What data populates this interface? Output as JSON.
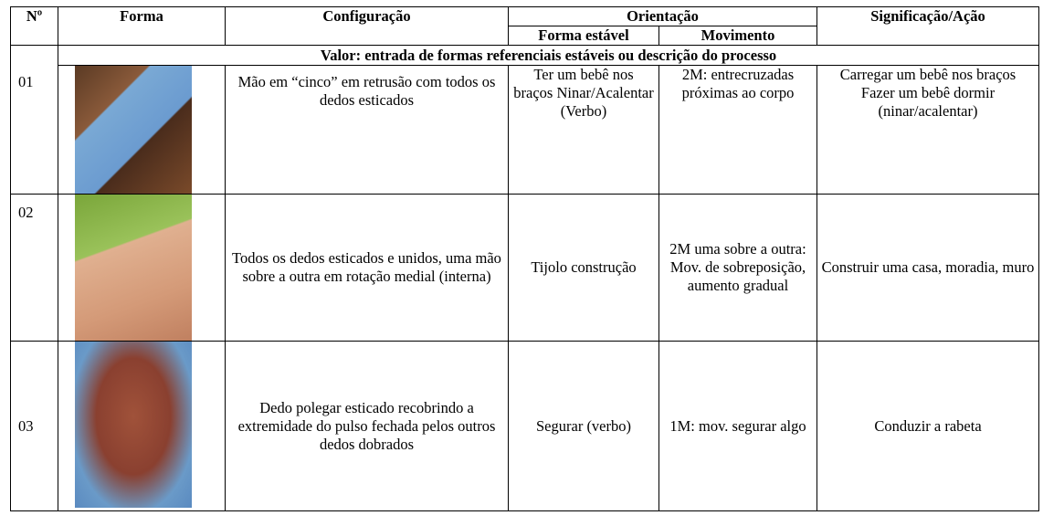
{
  "table": {
    "header": {
      "number": "Nº",
      "shape": "Forma",
      "configuration": "Configuração",
      "orientation": "Orientação",
      "stable_shape": "Forma estável",
      "movement": "Movimento",
      "meaning": "Significação/Ação"
    },
    "section": "Valor: entrada de formas referenciais estáveis ou descrição do processo",
    "rows": [
      {
        "number": "01",
        "configuration": "Mão em “cinco” em retrusão com todos os dedos esticados",
        "stable_shape": "Ter um bebê nos braços Ninar/Acalentar (Verbo)",
        "movement": "2M: entrecruzadas próximas ao corpo",
        "meaning": [
          "Carregar um bebê nos braços",
          "Fazer um bebê dormir (ninar/acalentar)"
        ]
      },
      {
        "number": "02",
        "configuration": "Todos os dedos esticados e unidos, uma mão sobre a outra em rotação medial (interna)",
        "stable_shape": "Tijolo construção",
        "movement": "2M uma sobre a outra: Mov. de sobreposição, aumento gradual",
        "meaning": [
          "Construir uma casa, moradia, muro"
        ]
      },
      {
        "number": "03",
        "configuration": "Dedo polegar esticado recobrindo a extremidade do pulso fechada pelos outros dedos dobrados",
        "stable_shape": "Segurar (verbo)",
        "movement": "1M: mov. segurar algo",
        "meaning": [
          "Conduzir a rabeta"
        ]
      }
    ]
  }
}
